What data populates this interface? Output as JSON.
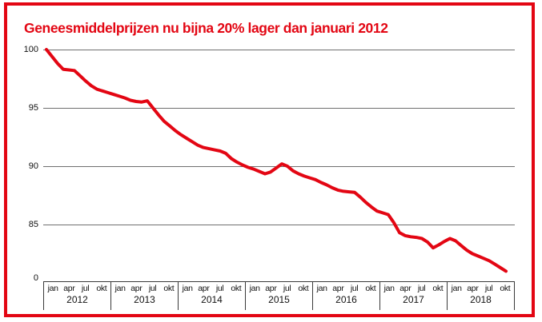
{
  "title": "Geneesmiddelprijzen nu bijna 20% lager dan januari 2012",
  "colors": {
    "accent_red": "#e30613",
    "gridline": "#6f6f6f",
    "axis_line": "#3a3a3a",
    "text": "#111111"
  },
  "y_axis": {
    "tick_labels": [
      "100",
      "95",
      "90",
      "85",
      "0"
    ],
    "gridline_values": [
      100,
      95,
      90,
      85
    ]
  },
  "x_axis": {
    "quarter_labels": [
      "jan",
      "apr",
      "jul",
      "okt"
    ],
    "years": [
      "2012",
      "2013",
      "2014",
      "2015",
      "2016",
      "2017",
      "2018"
    ]
  },
  "chart_data": {
    "type": "line",
    "title": "Geneesmiddelprijzen nu bijna 20% lager dan januari 2012",
    "xlabel": "",
    "ylabel": "",
    "x_range": "jan 2012 - nov 2018, monthly",
    "ylim": [
      80,
      100
    ],
    "broken_axis_bottom_label": "0",
    "grid": "horizontal",
    "legend": "none",
    "line_color": "#e30613",
    "values": [
      100.0,
      99.4,
      98.8,
      98.3,
      98.25,
      98.2,
      97.75,
      97.3,
      96.9,
      96.6,
      96.45,
      96.3,
      96.15,
      96.0,
      95.85,
      95.65,
      95.55,
      95.5,
      95.6,
      95.0,
      94.4,
      93.85,
      93.45,
      93.05,
      92.7,
      92.4,
      92.1,
      91.8,
      91.6,
      91.5,
      91.4,
      91.3,
      91.1,
      90.65,
      90.35,
      90.1,
      89.9,
      89.75,
      89.55,
      89.35,
      89.5,
      89.85,
      90.2,
      90.0,
      89.6,
      89.35,
      89.15,
      89.0,
      88.85,
      88.6,
      88.4,
      88.15,
      87.95,
      87.85,
      87.8,
      87.75,
      87.35,
      86.9,
      86.5,
      86.15,
      86.0,
      85.85,
      85.15,
      84.3,
      84.05,
      83.95,
      83.9,
      83.8,
      83.5,
      83.0,
      83.25,
      83.55,
      83.8,
      83.6,
      83.2,
      82.8,
      82.5,
      82.3,
      82.1,
      81.9,
      81.6,
      81.3,
      81.0
    ]
  }
}
